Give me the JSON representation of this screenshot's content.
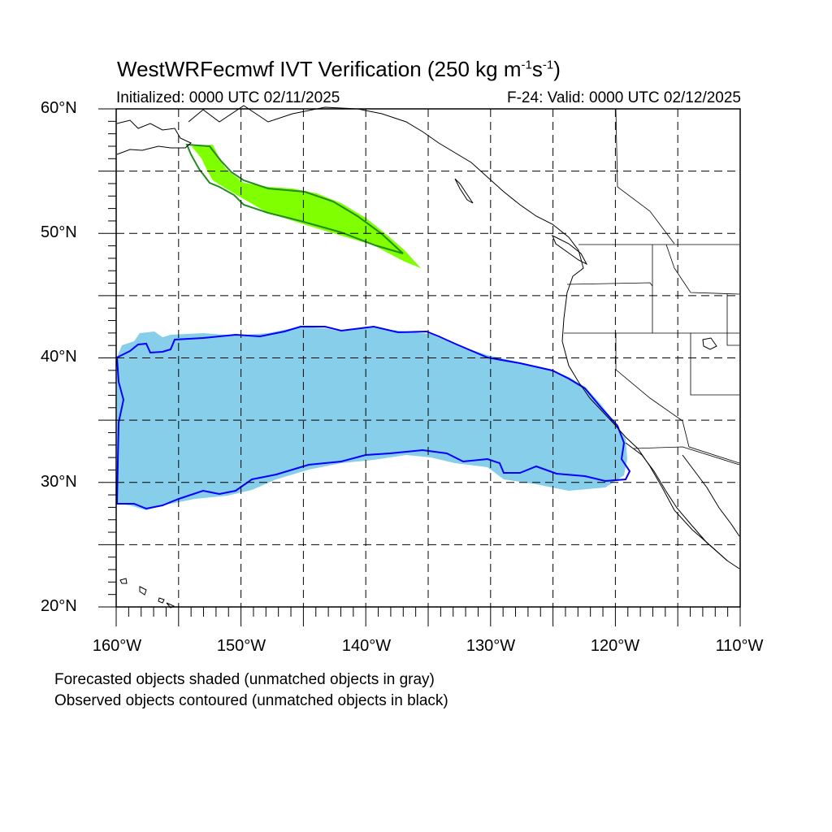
{
  "title_main": "WestWRFecmwf IVT Verification (250 kg m",
  "title_sup1": "-1",
  "title_mid": "s",
  "title_sup2": "-1",
  "title_end": ")",
  "initialized": "Initialized: 0000 UTC 02/11/2025",
  "valid": "F-24: Valid: 0000 UTC 02/12/2025",
  "lat_labels": [
    "60°N",
    "50°N",
    "40°N",
    "30°N",
    "20°N"
  ],
  "lon_labels": [
    "160°W",
    "150°W",
    "140°W",
    "130°W",
    "120°W",
    "110°W"
  ],
  "caption_forecast": "Forecasted objects shaded (unmatched objects in gray)",
  "caption_observed": "Observed objects contoured (unmatched objects in black)",
  "colors": {
    "forecast_object_1": "#87ceeb",
    "observed_contour_1": "#0000ff",
    "forecast_object_2": "#7fff00",
    "observed_contour_2": "#228b22",
    "coastline": "#000000",
    "grid": "#000000"
  },
  "map_extent": {
    "lon": [
      -160,
      -110
    ],
    "lat": [
      20,
      60
    ]
  },
  "gridlines": {
    "style": "dashed",
    "lon_step": 5,
    "lat_step": 5
  }
}
